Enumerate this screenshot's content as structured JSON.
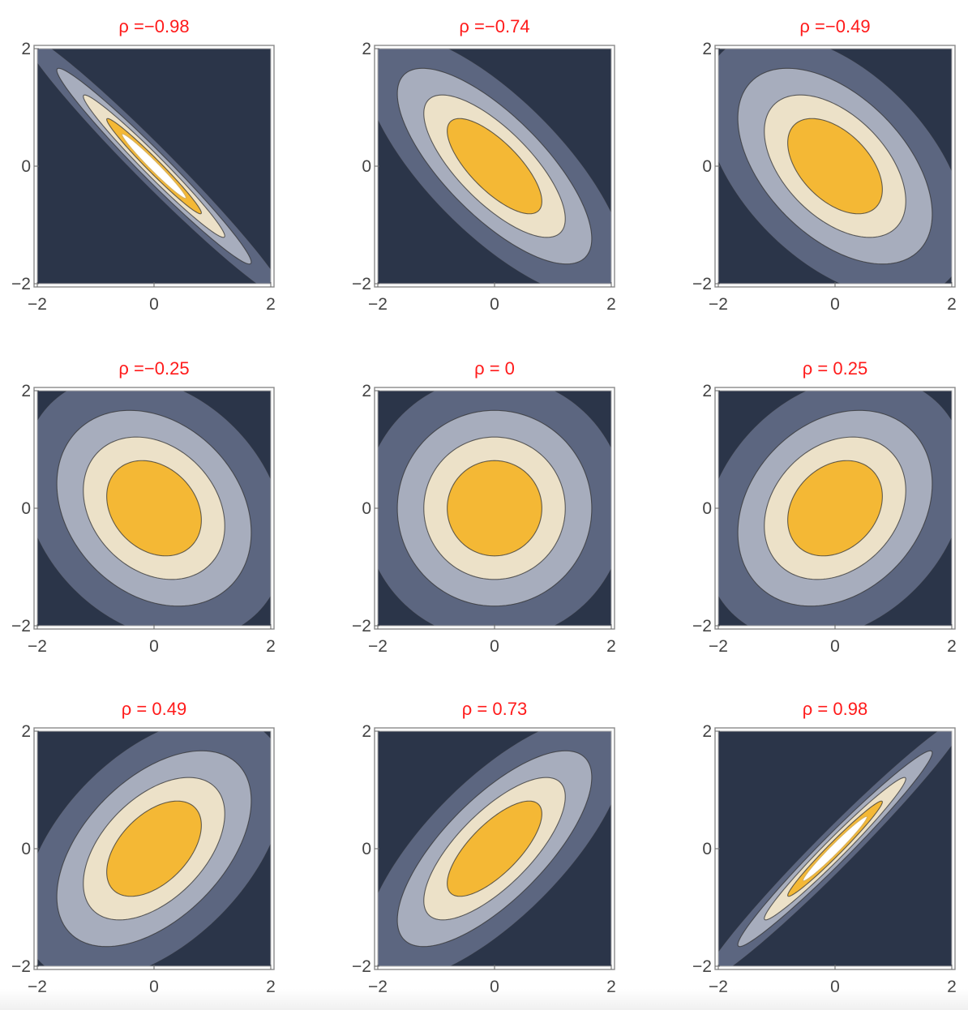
{
  "chart_data": {
    "type": "contour",
    "layout": "3x3 grid",
    "background_color": "#2b3549",
    "frame_color": "#8a8a8a",
    "title_color": "#ff1a1a",
    "x_range": [
      -2,
      2
    ],
    "y_range": [
      -2,
      2
    ],
    "x_ticks": [
      "−2",
      "0",
      "2"
    ],
    "y_ticks": [
      "−2",
      "0",
      "2"
    ],
    "contour_fill_colors": [
      "#5c6680",
      "#a7adbd",
      "#ece1c8",
      "#f4b835",
      "#ffffff"
    ],
    "contour_line_color": "#333333",
    "panels": [
      {
        "title": "ρ =−0.98",
        "rho": -0.98
      },
      {
        "title": "ρ =−0.74",
        "rho": -0.74
      },
      {
        "title": "ρ =−0.49",
        "rho": -0.49
      },
      {
        "title": "ρ =−0.25",
        "rho": -0.25
      },
      {
        "title": "ρ =  0",
        "rho": 0
      },
      {
        "title": "ρ = 0.25",
        "rho": 0.25
      },
      {
        "title": "ρ = 0.49",
        "rho": 0.49
      },
      {
        "title": "ρ = 0.73",
        "rho": 0.73
      },
      {
        "title": "ρ = 0.98",
        "rho": 0.98
      }
    ]
  }
}
